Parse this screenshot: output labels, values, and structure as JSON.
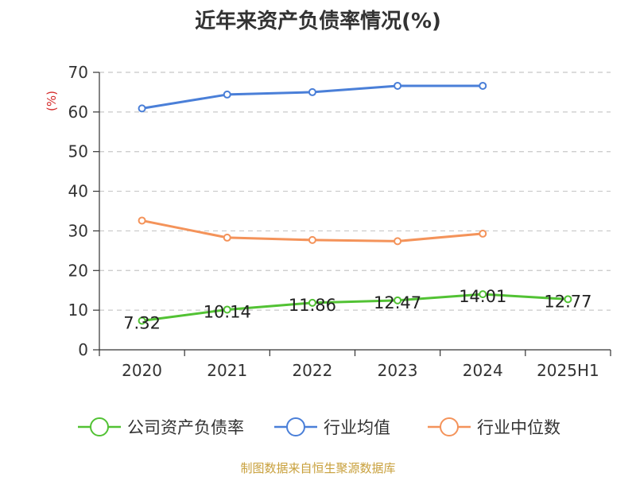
{
  "chart_data": {
    "type": "line",
    "title": "近年来资产负债率情况(%)",
    "ylabel": "(%)",
    "categories": [
      "2020",
      "2021",
      "2022",
      "2023",
      "2024",
      "2025H1"
    ],
    "ylim": [
      0,
      70
    ],
    "yticks": [
      0,
      10,
      20,
      30,
      40,
      50,
      60,
      70
    ],
    "grid": true,
    "legend_position": "bottom",
    "series": [
      {
        "name": "公司资产负债率",
        "color": "#52c234",
        "values": [
          7.32,
          10.14,
          11.86,
          12.47,
          14.01,
          12.77
        ],
        "labels": [
          "7.32",
          "10.14",
          "11.86",
          "12.47",
          "14.01",
          "12.77"
        ]
      },
      {
        "name": "行业均值",
        "color": "#4a7fd8",
        "values": [
          60.9,
          64.4,
          65.0,
          66.6,
          66.6,
          null
        ]
      },
      {
        "name": "行业中位数",
        "color": "#f4935a",
        "values": [
          32.6,
          28.3,
          27.7,
          27.4,
          29.3,
          null
        ]
      }
    ],
    "source": "制图数据来自恒生聚源数据库"
  }
}
